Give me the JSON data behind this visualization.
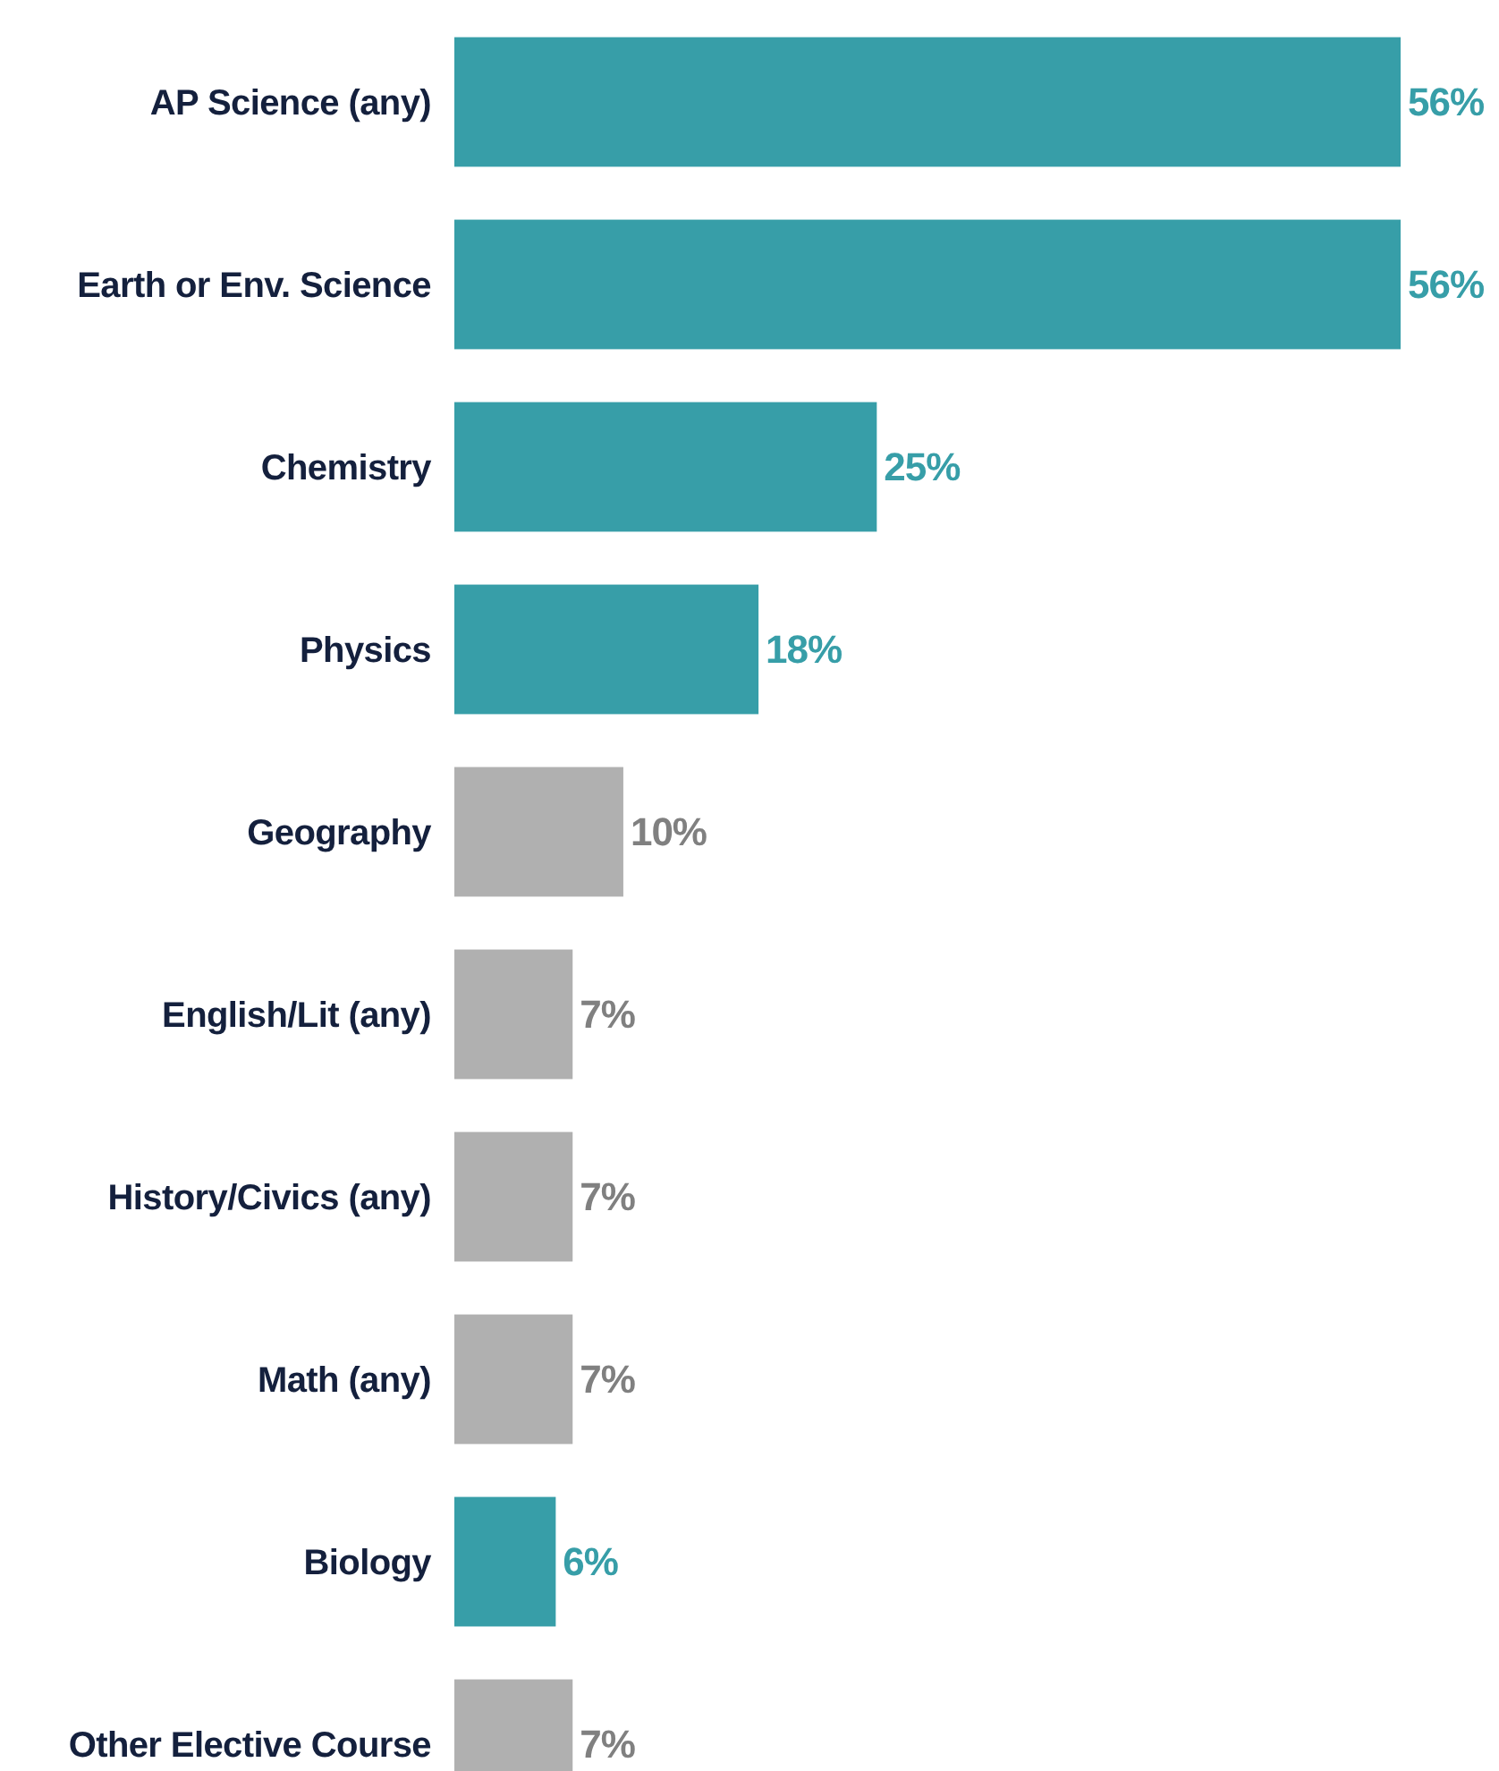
{
  "chart_data": {
    "type": "bar",
    "orientation": "horizontal",
    "value_labels": [
      "56%",
      "56%",
      "25%",
      "18%",
      "10%",
      "7%",
      "7%",
      "7%",
      "6%",
      "7%"
    ],
    "categories": [
      "AP Science (any)",
      "Earth or Env. Science",
      "Chemistry",
      "Physics",
      "Geography",
      "English/Lit (any)",
      "History/Civics (any)",
      "Math (any)",
      "Biology",
      "Other Elective Course"
    ],
    "values": [
      56,
      56,
      25,
      18,
      10,
      7,
      7,
      7,
      6,
      7
    ],
    "colors": [
      "#379ea8",
      "#379ea8",
      "#379ea8",
      "#379ea8",
      "#b0b0b0",
      "#b0b0b0",
      "#b0b0b0",
      "#b0b0b0",
      "#379ea8",
      "#b0b0b0"
    ]
  }
}
